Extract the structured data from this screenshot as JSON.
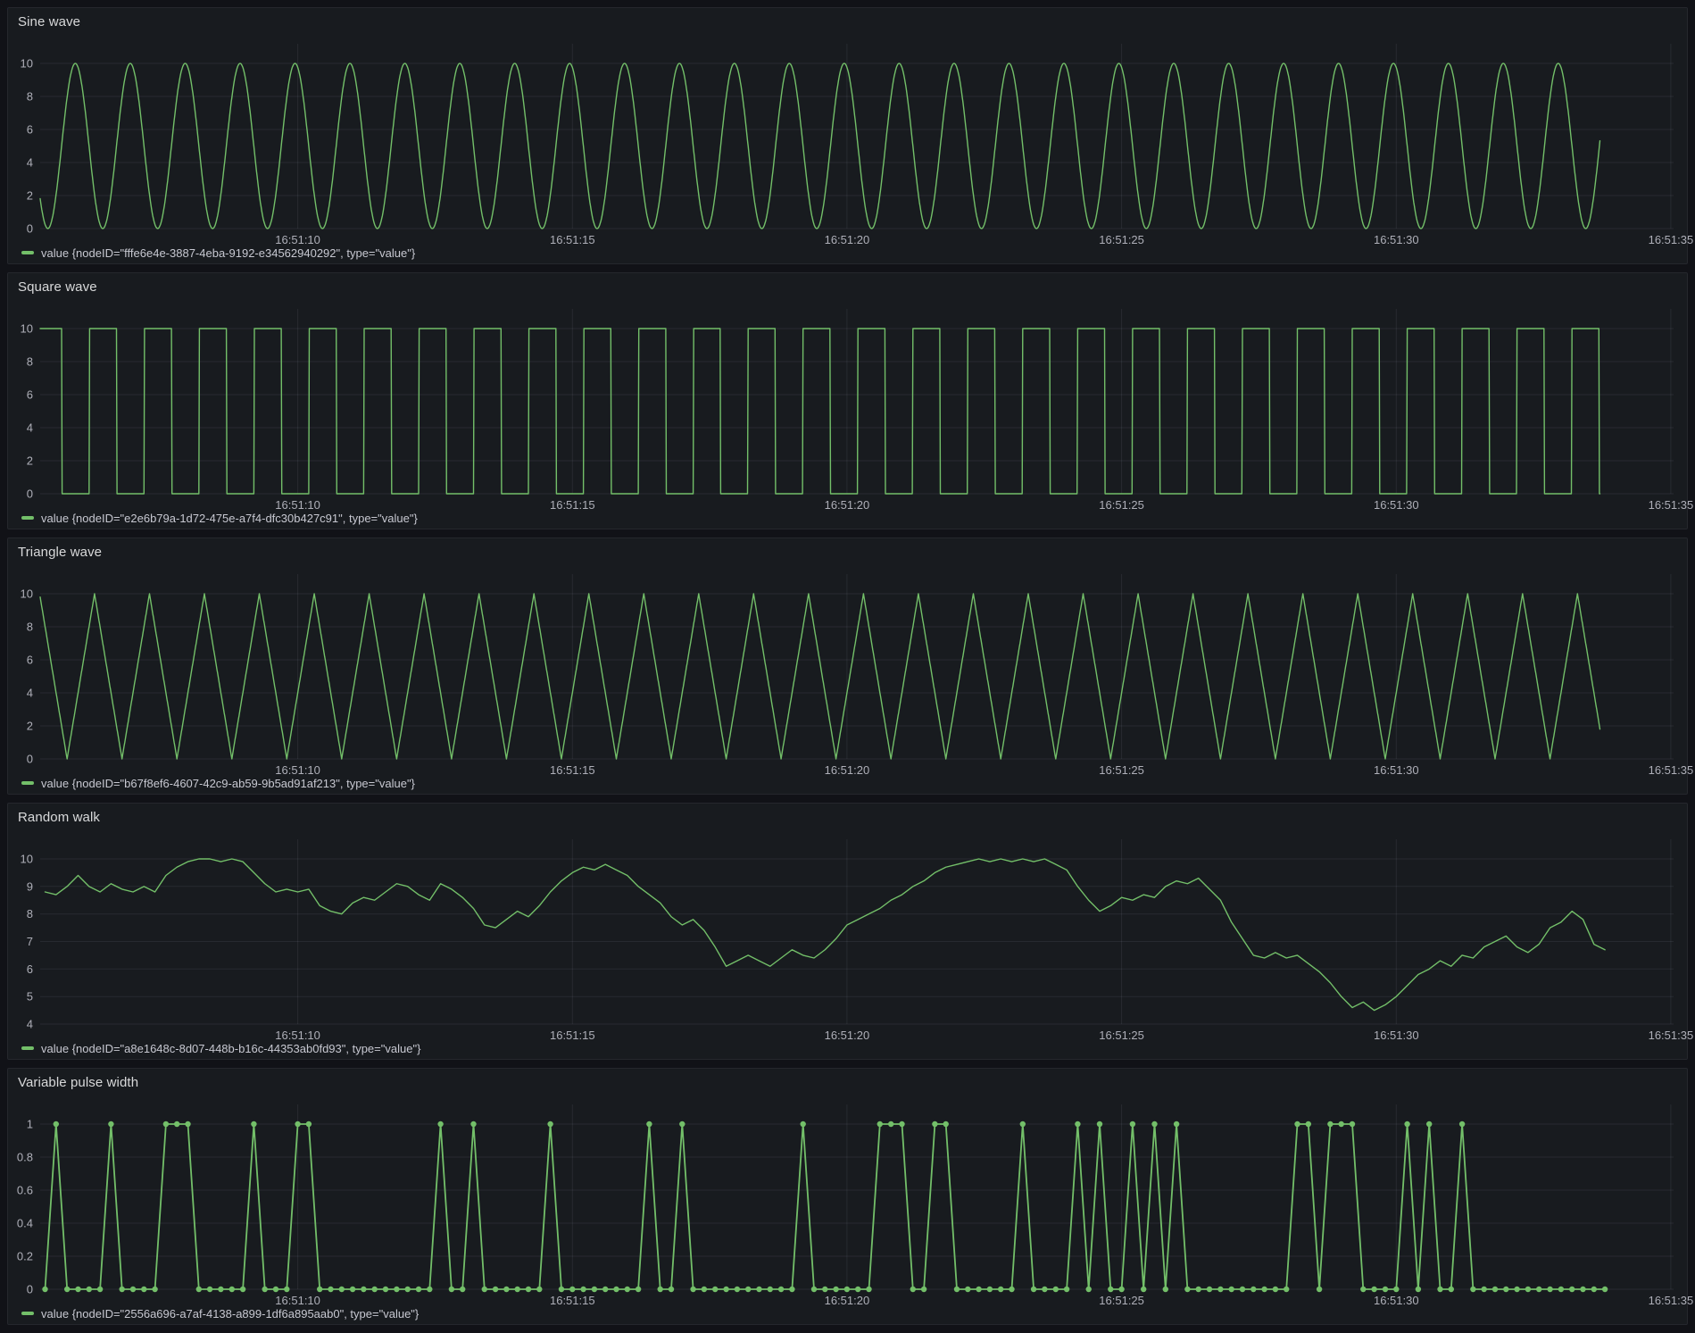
{
  "colors": {
    "page_bg": "#111217",
    "panel_bg": "#181b1f",
    "panel_border": "#25272d",
    "title_text": "#d8d9da",
    "tick_text": "#aeafb8",
    "legend_text": "#c7c8d1",
    "grid": "rgba(204,204,220,0.09)",
    "series_green": "#73bf69"
  },
  "x_axis": {
    "t_min": 5.31,
    "t_max": 35.05,
    "ticks": [
      {
        "t": 10,
        "label": "16:51:10"
      },
      {
        "t": 15,
        "label": "16:51:15"
      },
      {
        "t": 20,
        "label": "16:51:20"
      },
      {
        "t": 25,
        "label": "16:51:25"
      },
      {
        "t": 30,
        "label": "16:51:30"
      },
      {
        "t": 35,
        "label": "16:51:35"
      }
    ]
  },
  "chart_data": [
    {
      "type": "line",
      "title": "Sine wave",
      "legend": "value {nodeID=\"fffe6e4e-3887-4eba-9192-e34562940292\", type=\"value\"}",
      "series_color": "#73bf69",
      "y_ticks": [
        0,
        2,
        4,
        6,
        8,
        10
      ],
      "ylim": [
        0,
        11.2
      ],
      "grid": true,
      "legend_position": "bottom",
      "show_points": false,
      "wave": {
        "kind": "sine",
        "min": 0,
        "max": 10,
        "period_s": 1.0,
        "phase_s": 0.7,
        "t_start": 5.31,
        "t_end": 33.72
      }
    },
    {
      "type": "line",
      "title": "Square wave",
      "legend": "value {nodeID=\"e2e6b79a-1d72-475e-a7f4-dfc30b427c91\", type=\"value\"}",
      "series_color": "#73bf69",
      "y_ticks": [
        0,
        2,
        4,
        6,
        8,
        10
      ],
      "ylim": [
        0,
        11.2
      ],
      "grid": true,
      "legend_position": "bottom",
      "show_points": false,
      "wave": {
        "kind": "square",
        "min": 0,
        "max": 10,
        "period_s": 1.0,
        "phase_s": 0.2,
        "t_start": 5.31,
        "t_end": 33.72
      }
    },
    {
      "type": "line",
      "title": "Triangle wave",
      "legend": "value {nodeID=\"b67f8ef6-4607-42c9-ab59-9b5ad91af213\", type=\"value\"}",
      "series_color": "#73bf69",
      "y_ticks": [
        0,
        2,
        4,
        6,
        8,
        10
      ],
      "ylim": [
        0,
        11.2
      ],
      "grid": true,
      "legend_position": "bottom",
      "show_points": false,
      "wave": {
        "kind": "triangle",
        "min": 0,
        "max": 10,
        "period_s": 1.0,
        "phase_s": 0.3,
        "t_start": 5.31,
        "t_end": 33.72
      }
    },
    {
      "type": "line",
      "title": "Random walk",
      "legend": "value {nodeID=\"a8e1648c-8d07-448b-b16c-44353ab0fd93\", type=\"value\"}",
      "series_color": "#73bf69",
      "y_ticks": [
        4,
        5,
        6,
        7,
        8,
        9,
        10
      ],
      "ylim": [
        3.8,
        10.5
      ],
      "grid": true,
      "legend_position": "bottom",
      "show_points": false,
      "samples": {
        "t_start": 5.4,
        "dt": 0.2,
        "values": [
          8.8,
          8.7,
          9.0,
          9.4,
          9.0,
          8.8,
          9.1,
          8.9,
          8.8,
          9.0,
          8.8,
          9.4,
          9.7,
          9.9,
          10.0,
          10.0,
          9.9,
          10.0,
          9.9,
          9.5,
          9.1,
          8.8,
          8.9,
          8.8,
          8.9,
          8.3,
          8.1,
          8.0,
          8.4,
          8.6,
          8.5,
          8.8,
          9.1,
          9.0,
          8.7,
          8.5,
          9.1,
          8.9,
          8.6,
          8.2,
          7.6,
          7.5,
          7.8,
          8.1,
          7.9,
          8.3,
          8.8,
          9.2,
          9.5,
          9.7,
          9.6,
          9.8,
          9.6,
          9.4,
          9.0,
          8.7,
          8.4,
          7.9,
          7.6,
          7.8,
          7.4,
          6.8,
          6.1,
          6.3,
          6.5,
          6.3,
          6.1,
          6.4,
          6.7,
          6.5,
          6.4,
          6.7,
          7.1,
          7.6,
          7.8,
          8.0,
          8.2,
          8.5,
          8.7,
          9.0,
          9.2,
          9.5,
          9.7,
          9.8,
          9.9,
          10.0,
          9.9,
          10.0,
          9.9,
          10.0,
          9.9,
          10.0,
          9.8,
          9.6,
          9.0,
          8.5,
          8.1,
          8.3,
          8.6,
          8.5,
          8.7,
          8.6,
          9.0,
          9.2,
          9.1,
          9.3,
          8.9,
          8.5,
          7.7,
          7.1,
          6.5,
          6.4,
          6.6,
          6.4,
          6.5,
          6.2,
          5.9,
          5.5,
          5.0,
          4.6,
          4.8,
          4.5,
          4.7,
          5.0,
          5.4,
          5.8,
          6.0,
          6.3,
          6.1,
          6.5,
          6.4,
          6.8,
          7.0,
          7.2,
          6.8,
          6.6,
          6.9,
          7.5,
          7.7,
          8.1,
          7.8,
          6.9,
          6.7
        ]
      }
    },
    {
      "type": "line",
      "title": "Variable pulse width",
      "legend": "value {nodeID=\"2556a696-a7af-4138-a899-1df6a895aab0\", type=\"value\"}",
      "series_color": "#73bf69",
      "y_ticks": [
        0,
        0.2,
        0.4,
        0.6,
        0.8,
        1
      ],
      "ylim": [
        0,
        1.08
      ],
      "grid": true,
      "legend_position": "bottom",
      "show_points": true,
      "samples": {
        "t_start": 5.4,
        "dt": 0.2,
        "values": [
          0,
          1,
          0,
          0,
          0,
          0,
          1,
          0,
          0,
          0,
          0,
          1,
          1,
          1,
          0,
          0,
          0,
          0,
          0,
          1,
          0,
          0,
          0,
          1,
          1,
          0,
          0,
          0,
          0,
          0,
          0,
          0,
          0,
          0,
          0,
          0,
          1,
          0,
          0,
          1,
          0,
          0,
          0,
          0,
          0,
          0,
          1,
          0,
          0,
          0,
          0,
          0,
          0,
          0,
          0,
          1,
          0,
          0,
          1,
          0,
          0,
          0,
          0,
          0,
          0,
          0,
          0,
          0,
          0,
          1,
          0,
          0,
          0,
          0,
          0,
          0,
          1,
          1,
          1,
          0,
          0,
          1,
          1,
          0,
          0,
          0,
          0,
          0,
          0,
          1,
          0,
          0,
          0,
          0,
          1,
          0,
          1,
          0,
          0,
          1,
          0,
          1,
          0,
          1,
          0,
          0,
          0,
          0,
          0,
          0,
          0,
          0,
          0,
          0,
          1,
          1,
          0,
          1,
          1,
          1,
          0,
          0,
          0,
          0,
          1,
          0,
          1,
          0,
          0,
          1,
          0,
          0,
          0,
          0,
          0,
          0,
          0,
          0,
          0,
          0,
          0,
          0,
          0
        ]
      }
    }
  ]
}
